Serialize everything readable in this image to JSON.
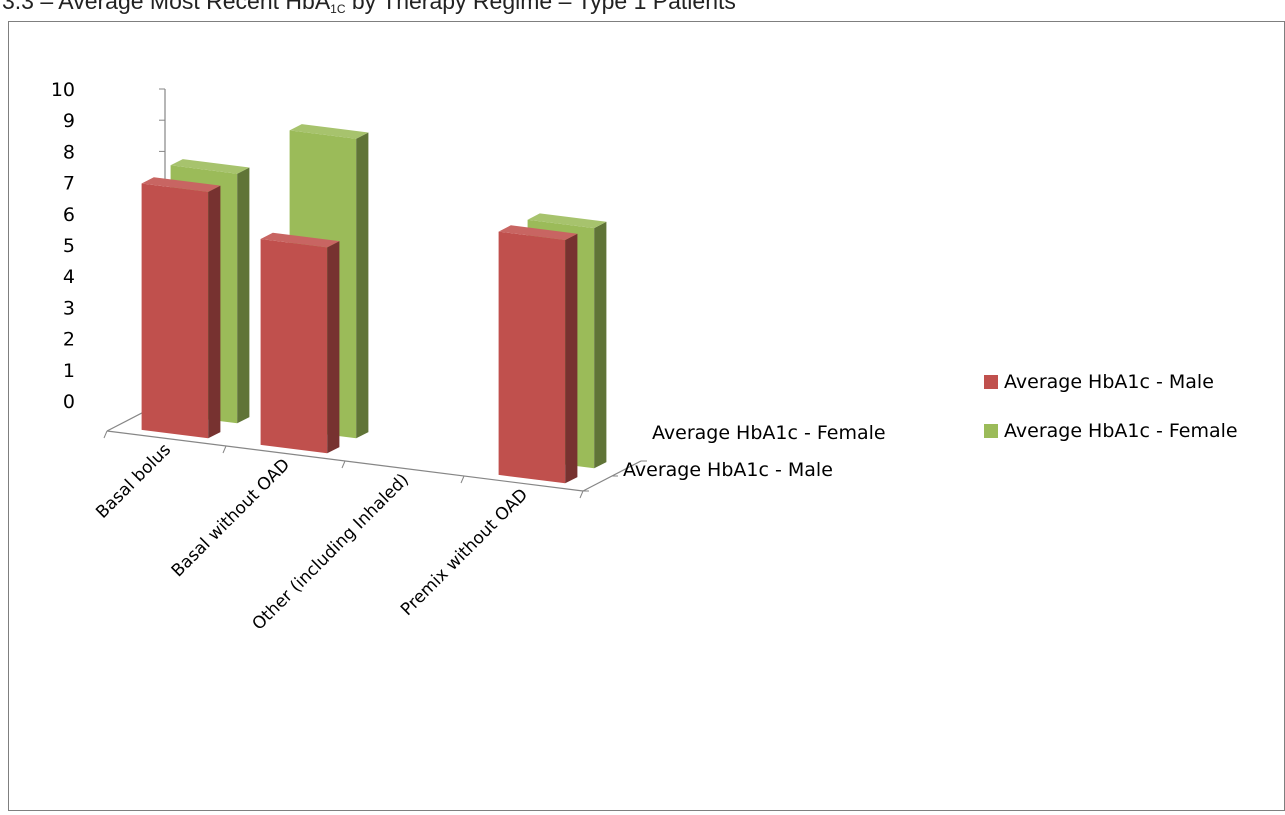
{
  "heading": {
    "prefix": "3.3 – Average Most Recent HbA",
    "sub": "1C",
    "suffix": " by Therapy Regime – Type 1 Patients"
  },
  "chart_data": {
    "type": "bar",
    "categories": [
      "Basal bolus",
      "Basal without OAD",
      "Other (including Inhaled)",
      "Premix without OAD"
    ],
    "series": [
      {
        "name": "Average HbA1c - Male",
        "color": "#c0504d",
        "values": [
          7.9,
          6.6,
          null,
          7.8
        ]
      },
      {
        "name": "Average HbA1c - Female",
        "color": "#9bbb59",
        "values": [
          8.0,
          9.6,
          null,
          7.7
        ]
      }
    ],
    "ylim": [
      0,
      10
    ],
    "yticks": [
      "0",
      "1",
      "2",
      "3",
      "4",
      "5",
      "6",
      "7",
      "8",
      "9",
      "10"
    ],
    "depth_labels": [
      "Average HbA1c - Female",
      "Average HbA1c - Male"
    ],
    "legend": [
      {
        "name": "Average HbA1c - Male",
        "color": "#c0504d"
      },
      {
        "name": "Average HbA1c - Female",
        "color": "#9bbb59"
      }
    ],
    "legend_position": "right",
    "grid": false
  }
}
